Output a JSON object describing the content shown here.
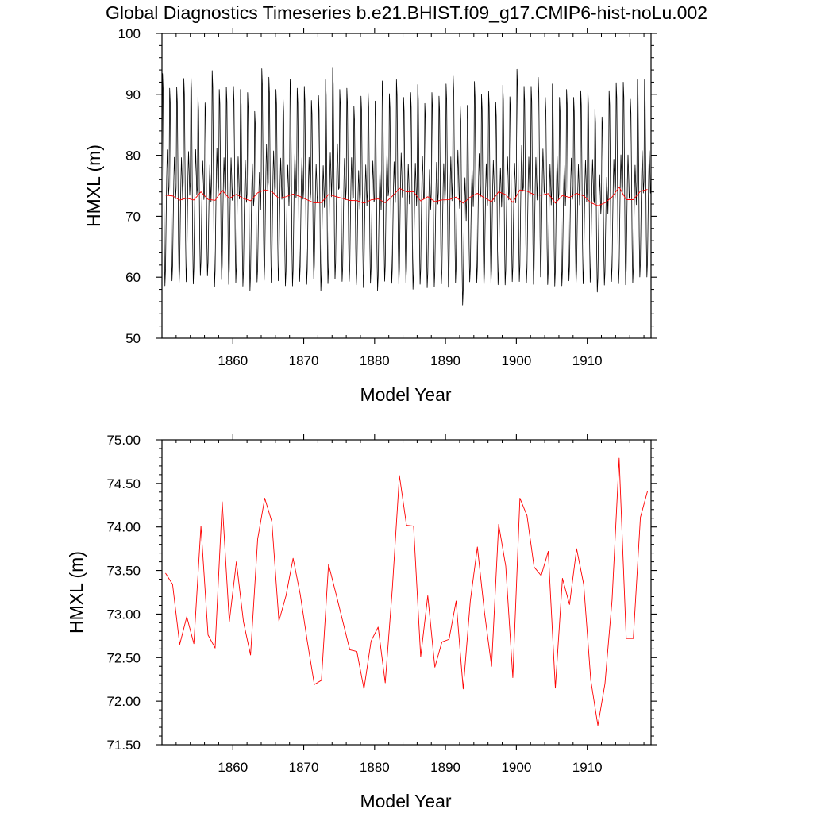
{
  "title": "Global Diagnostics Timeseries b.e21.BHIST.f09_g17.CMIP6-hist-noLu.002",
  "chart_data": [
    {
      "type": "line",
      "xlabel": "Model Year",
      "ylabel": "HMXL (m)",
      "xlim": [
        1850,
        1919
      ],
      "ylim": [
        50,
        100
      ],
      "x_ticks": [
        1860,
        1870,
        1880,
        1890,
        1900,
        1910
      ],
      "x_tick_labels": [
        "1860",
        "1870",
        "1880",
        "1890",
        "1900",
        "1910"
      ],
      "y_ticks": [
        50,
        60,
        70,
        80,
        90,
        100
      ],
      "y_tick_labels": [
        "50",
        "60",
        "70",
        "80",
        "90",
        "100"
      ],
      "grid": false,
      "series": [
        {
          "color": "#000000",
          "resolution": "monthly",
          "monthly_cycle_shape": [
            0.0,
            1.0,
            0.85,
            0.18,
            -0.55,
            -0.95,
            -0.8,
            -0.35,
            0.05,
            0.3,
            0.12,
            -0.12
          ],
          "annual_peaks": [
            93.4,
            91.0,
            91.2,
            92.6,
            93.3,
            89.6,
            88.6,
            93.9,
            90.8,
            91.2,
            91.3,
            90.8,
            90.3,
            87.2,
            94.2,
            92.8,
            90.8,
            89.5,
            92.5,
            91.0,
            91.3,
            89.0,
            89.8,
            92.4,
            94.3,
            90.8,
            91.0,
            88.0,
            89.7,
            90.3,
            88.9,
            92.2,
            90.1,
            92.4,
            89.5,
            90.3,
            91.6,
            88.5,
            90.3,
            89.7,
            91.7,
            93.0,
            88.0,
            88.2,
            92.1,
            90.0,
            90.5,
            88.7,
            91.5,
            89.6,
            94.1,
            91.3,
            91.3,
            92.8,
            89.5,
            91.7,
            89.5,
            90.8,
            89.5,
            90.6,
            90.6,
            87.6,
            86.3,
            90.6,
            91.9,
            92.0,
            89.2,
            92.4,
            92.4,
            89.9
          ],
          "annual_troughs": [
            57.7,
            58.6,
            58.1,
            58.4,
            58.0,
            59.5,
            59.5,
            57.5,
            58.8,
            58.0,
            58.3,
            57.7,
            57.0,
            58.5,
            58.6,
            58.3,
            58.6,
            57.8,
            57.7,
            58.5,
            58.0,
            59.0,
            57.0,
            58.1,
            58.8,
            58.5,
            58.5,
            58.0,
            57.5,
            58.2,
            57.0,
            58.5,
            58.2,
            58.0,
            58.3,
            57.2,
            58.0,
            57.5,
            57.6,
            58.1,
            57.5,
            58.2,
            54.6,
            58.5,
            58.3,
            57.5,
            58.1,
            58.0,
            57.9,
            58.5,
            58.4,
            58.2,
            58.0,
            59.2,
            58.0,
            57.7,
            57.8,
            58.6,
            58.0,
            58.1,
            58.4,
            56.8,
            58.0,
            58.5,
            58.1,
            57.9,
            58.3,
            59.2,
            59.2,
            59.0
          ]
        },
        {
          "color": "#ff0000",
          "resolution": "annual mean",
          "x": [
            1850.5,
            1851.5,
            1852.5,
            1853.5,
            1854.5,
            1855.5,
            1856.5,
            1857.5,
            1858.5,
            1859.5,
            1860.5,
            1861.5,
            1862.5,
            1863.5,
            1864.5,
            1865.5,
            1866.5,
            1867.5,
            1868.5,
            1869.5,
            1870.5,
            1871.5,
            1872.5,
            1873.5,
            1874.5,
            1875.5,
            1876.5,
            1877.5,
            1878.5,
            1879.5,
            1880.5,
            1881.5,
            1882.5,
            1883.5,
            1884.5,
            1885.5,
            1886.5,
            1887.5,
            1888.5,
            1889.5,
            1890.5,
            1891.5,
            1892.5,
            1893.5,
            1894.5,
            1895.5,
            1896.5,
            1897.5,
            1898.5,
            1899.5,
            1900.5,
            1901.5,
            1902.5,
            1903.5,
            1904.5,
            1905.5,
            1906.5,
            1907.5,
            1908.5,
            1909.5,
            1910.5,
            1911.5,
            1912.5,
            1913.5,
            1914.5,
            1915.5,
            1916.5,
            1917.5,
            1918.5
          ],
          "values": [
            73.47,
            73.34,
            72.65,
            72.97,
            72.66,
            74.01,
            72.76,
            72.61,
            74.29,
            72.91,
            73.6,
            72.91,
            72.53,
            73.86,
            74.33,
            74.06,
            72.92,
            73.21,
            73.64,
            73.23,
            72.69,
            72.19,
            72.24,
            73.57,
            73.25,
            72.92,
            72.59,
            72.57,
            72.14,
            72.69,
            72.85,
            72.21,
            73.29,
            74.59,
            74.02,
            74.01,
            72.51,
            73.21,
            72.39,
            72.68,
            72.71,
            73.15,
            72.14,
            73.15,
            73.77,
            73.02,
            72.4,
            74.03,
            73.55,
            72.27,
            74.33,
            74.13,
            73.54,
            73.44,
            73.72,
            72.15,
            73.41,
            73.11,
            73.75,
            73.34,
            72.24,
            71.72,
            72.2,
            73.16,
            74.79,
            72.72,
            72.72,
            74.11,
            74.41
          ]
        }
      ]
    },
    {
      "type": "line",
      "xlabel": "Model Year",
      "ylabel": "HMXL (m)",
      "xlim": [
        1850,
        1919
      ],
      "ylim": [
        71.5,
        75.0
      ],
      "x_ticks": [
        1860,
        1870,
        1880,
        1890,
        1900,
        1910
      ],
      "x_tick_labels": [
        "1860",
        "1870",
        "1880",
        "1890",
        "1900",
        "1910"
      ],
      "y_ticks": [
        71.5,
        72.0,
        72.5,
        73.0,
        73.5,
        74.0,
        74.5,
        75.0
      ],
      "y_tick_labels": [
        "71.50",
        "72.00",
        "72.50",
        "73.00",
        "73.50",
        "74.00",
        "74.50",
        "75.00"
      ],
      "grid": false,
      "series": [
        {
          "color": "#ff0000",
          "resolution": "annual mean",
          "x": [
            1850.5,
            1851.5,
            1852.5,
            1853.5,
            1854.5,
            1855.5,
            1856.5,
            1857.5,
            1858.5,
            1859.5,
            1860.5,
            1861.5,
            1862.5,
            1863.5,
            1864.5,
            1865.5,
            1866.5,
            1867.5,
            1868.5,
            1869.5,
            1870.5,
            1871.5,
            1872.5,
            1873.5,
            1874.5,
            1875.5,
            1876.5,
            1877.5,
            1878.5,
            1879.5,
            1880.5,
            1881.5,
            1882.5,
            1883.5,
            1884.5,
            1885.5,
            1886.5,
            1887.5,
            1888.5,
            1889.5,
            1890.5,
            1891.5,
            1892.5,
            1893.5,
            1894.5,
            1895.5,
            1896.5,
            1897.5,
            1898.5,
            1899.5,
            1900.5,
            1901.5,
            1902.5,
            1903.5,
            1904.5,
            1905.5,
            1906.5,
            1907.5,
            1908.5,
            1909.5,
            1910.5,
            1911.5,
            1912.5,
            1913.5,
            1914.5,
            1915.5,
            1916.5,
            1917.5,
            1918.5
          ],
          "values": [
            73.47,
            73.34,
            72.65,
            72.97,
            72.66,
            74.01,
            72.76,
            72.61,
            74.29,
            72.91,
            73.6,
            72.91,
            72.53,
            73.86,
            74.33,
            74.06,
            72.92,
            73.21,
            73.64,
            73.23,
            72.69,
            72.19,
            72.24,
            73.57,
            73.25,
            72.92,
            72.59,
            72.57,
            72.14,
            72.69,
            72.85,
            72.21,
            73.29,
            74.59,
            74.02,
            74.01,
            72.51,
            73.21,
            72.39,
            72.68,
            72.71,
            73.15,
            72.14,
            73.15,
            73.77,
            73.02,
            72.4,
            74.03,
            73.55,
            72.27,
            74.33,
            74.13,
            73.54,
            73.44,
            73.72,
            72.15,
            73.41,
            73.11,
            73.75,
            73.34,
            72.24,
            71.72,
            72.2,
            73.16,
            74.79,
            72.72,
            72.72,
            74.11,
            74.41
          ]
        }
      ]
    }
  ]
}
